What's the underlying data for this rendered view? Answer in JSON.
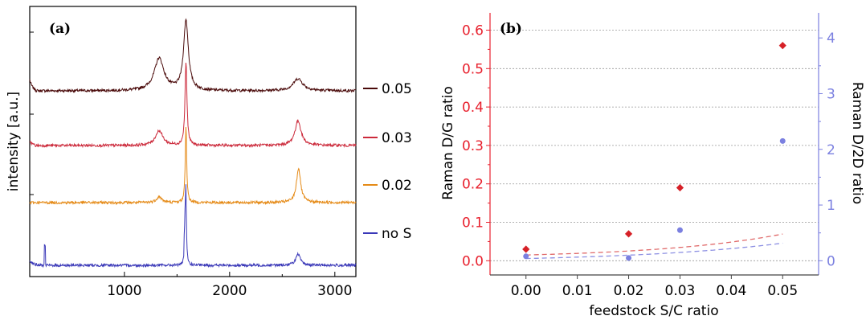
{
  "chart_data": [
    {
      "panel": "(a)",
      "type": "line",
      "ylabel": "intensity [a.u.]",
      "xlim": [
        100,
        3200
      ],
      "xticks": [
        1000,
        2000,
        3000
      ],
      "legend_placement": "right",
      "series": [
        {
          "name": "0.05",
          "color": "#4a0a0a",
          "peaks": [
            {
              "x": 1330,
              "height": 0.72,
              "width": 110
            },
            {
              "x": 1585,
              "height": 1.55,
              "width": 55
            },
            {
              "x": 2650,
              "height": 0.27,
              "width": 110
            }
          ]
        },
        {
          "name": "0.03",
          "color": "#cc2a3b",
          "peaks": [
            {
              "x": 1330,
              "height": 0.33,
              "width": 85
            },
            {
              "x": 1585,
              "height": 1.85,
              "width": 22
            },
            {
              "x": 2650,
              "height": 0.55,
              "width": 70
            }
          ]
        },
        {
          "name": "0.02",
          "color": "#e58a16",
          "peaks": [
            {
              "x": 1330,
              "height": 0.13,
              "width": 60
            },
            {
              "x": 1585,
              "height": 1.72,
              "width": 16
            },
            {
              "x": 2655,
              "height": 0.76,
              "width": 48
            }
          ]
        },
        {
          "name": "no S",
          "color": "#3a38b8",
          "peaks": [
            {
              "x": 1583,
              "height": 1.82,
              "width": 13
            },
            {
              "x": 2650,
              "height": 0.24,
              "width": 55
            }
          ]
        }
      ]
    },
    {
      "panel": "(b)",
      "type": "scatter",
      "xlabel": "feedstock S/C ratio",
      "ylabel_left": "Raman D/G ratio",
      "ylabel_right": "Raman D/2D ratio",
      "xlim": [
        -0.007,
        0.057
      ],
      "xticks": [
        0.0,
        0.01,
        0.02,
        0.03,
        0.04,
        0.05
      ],
      "xtick_labels": [
        "0.00",
        "0.01",
        "0.02",
        "0.03",
        "0.04",
        "0.05"
      ],
      "ylim_left": [
        -0.037,
        0.645
      ],
      "yticks_left": [
        0.0,
        0.1,
        0.2,
        0.3,
        0.4,
        0.5,
        0.6
      ],
      "ytick_labels_left": [
        "0.0",
        "0.1",
        "0.2",
        "0.3",
        "0.4",
        "0.5",
        "0.6"
      ],
      "ylim_right": [
        -0.255,
        4.45
      ],
      "yticks_right": [
        0,
        1,
        2,
        3,
        4
      ],
      "ytick_labels_right": [
        "0",
        "1",
        "2",
        "3",
        "4"
      ],
      "grid": true,
      "left_color": "#e8212e",
      "right_color": "#7b80e0",
      "series": [
        {
          "name": "D/G",
          "axis": "left",
          "marker": "diamond",
          "color": "#d62027",
          "x": [
            0.0,
            0.02,
            0.03,
            0.05
          ],
          "y": [
            0.03,
            0.07,
            0.19,
            0.56
          ]
        },
        {
          "name": "D/2D",
          "axis": "right",
          "marker": "circle",
          "color": "#7b80e0",
          "x": [
            0.0,
            0.02,
            0.03,
            0.05
          ],
          "y": [
            0.08,
            0.05,
            0.55,
            2.15
          ]
        }
      ],
      "fits": [
        {
          "axis": "left",
          "color": "#e06a6a",
          "a": 0.015,
          "b": 0.0247,
          "c": 0.0083
        },
        {
          "axis": "right",
          "color": "#8d90e3",
          "a": 0.04,
          "b": 0.0295,
          "c": 0.062
        }
      ]
    }
  ]
}
